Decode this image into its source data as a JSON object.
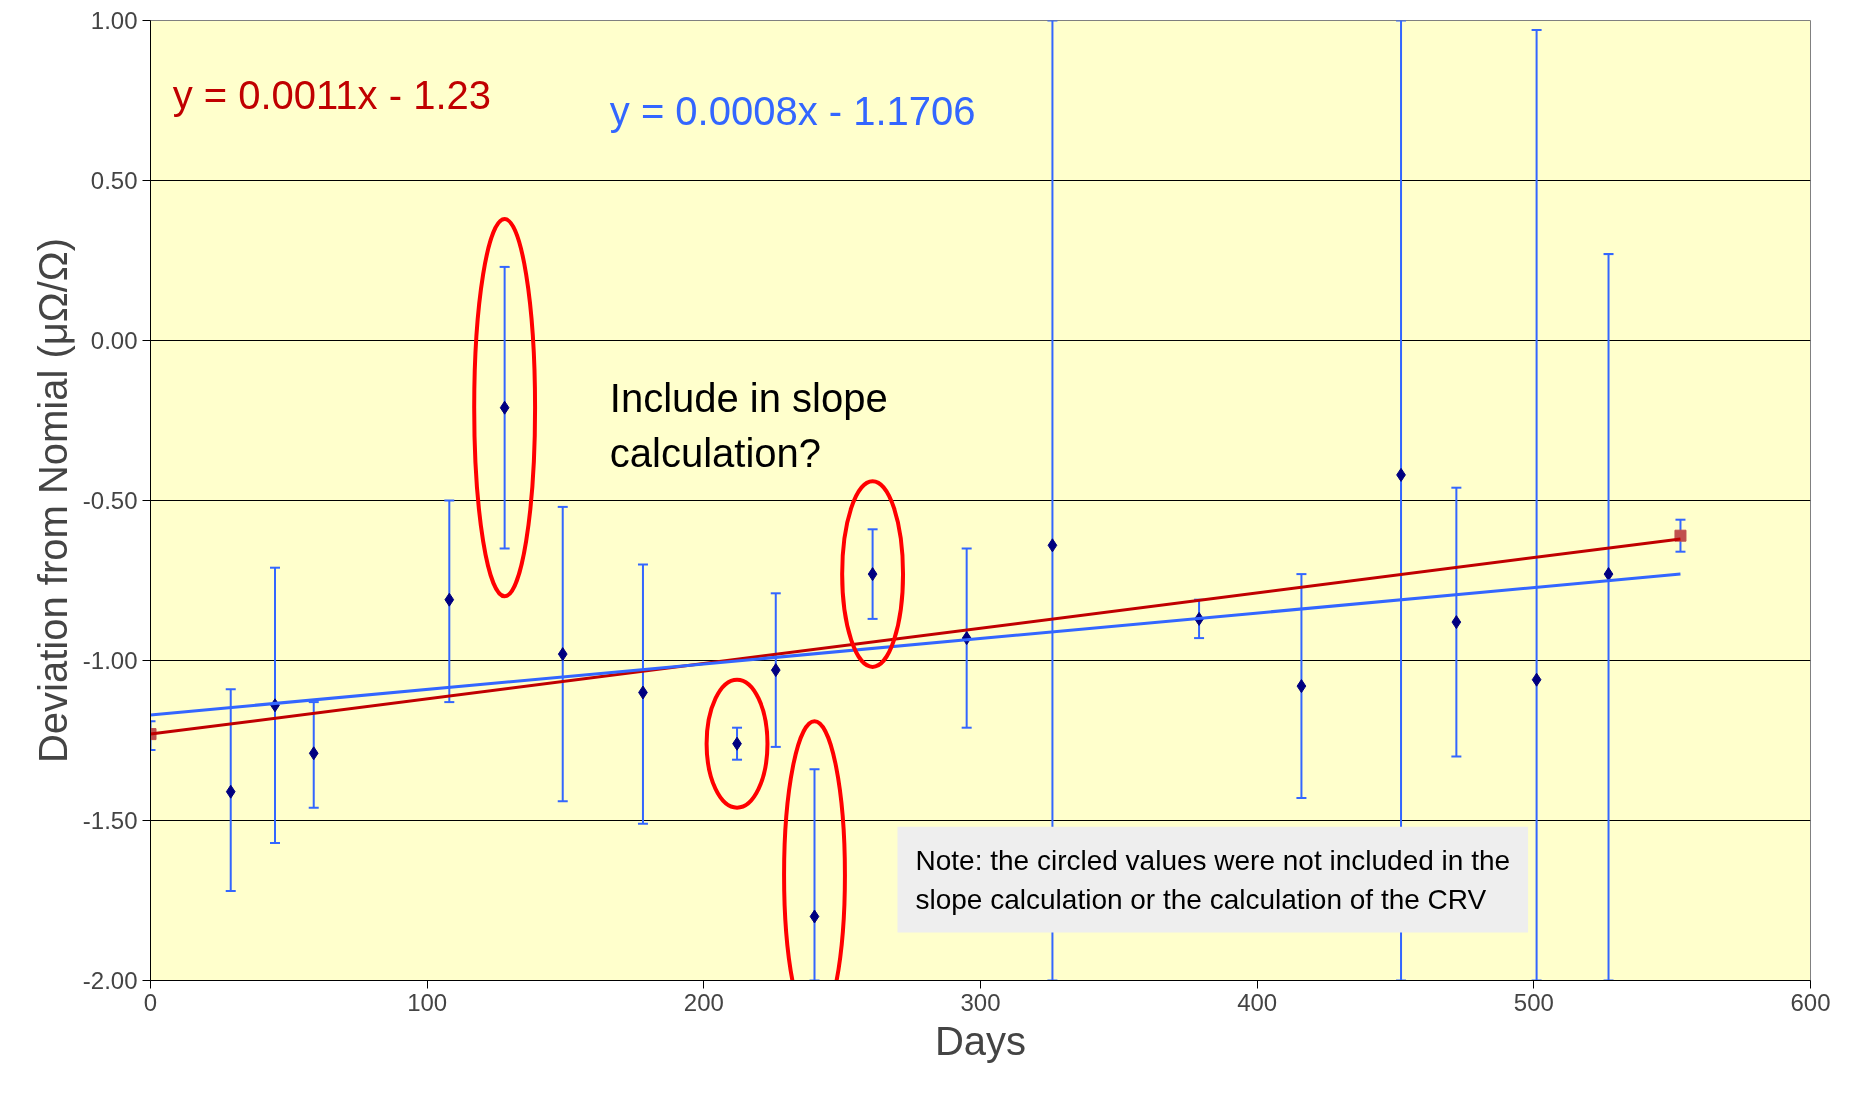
{
  "chart_data": {
    "type": "scatter",
    "xlabel": "Days",
    "ylabel": "Deviation from Nomial (μΩ/Ω)",
    "xlim": [
      0,
      600
    ],
    "xticks": [
      0,
      100,
      200,
      300,
      400,
      500,
      600
    ],
    "ylim": [
      -2.0,
      1.0
    ],
    "yticks": [
      {
        "value": -2.0,
        "label": "-2.00"
      },
      {
        "value": -1.5,
        "label": "-1.50"
      },
      {
        "value": -1.0,
        "label": "-1.00"
      },
      {
        "value": -0.5,
        "label": "-0.50"
      },
      {
        "value": 0.0,
        "label": "0.00"
      },
      {
        "value": 0.5,
        "label": "0.50"
      },
      {
        "value": 1.0,
        "label": "1.00"
      }
    ],
    "grid": "y",
    "marker": "diamond",
    "series": [
      {
        "color": "#000080",
        "x": [
          29,
          45,
          59,
          108,
          149,
          178,
          226,
          295,
          326,
          379,
          416,
          452,
          472,
          501,
          527
        ],
        "values": [
          -1.41,
          -1.14,
          -1.29,
          -0.81,
          -0.98,
          -1.1,
          -1.03,
          -0.93,
          -0.64,
          -0.87,
          -1.08,
          -0.42,
          -0.88,
          -1.06,
          -0.73
        ],
        "errors": [
          [
            -1.72,
            -1.09
          ],
          [
            -1.57,
            -0.71
          ],
          [
            -1.46,
            -1.13
          ],
          [
            -1.13,
            -0.5
          ],
          [
            -1.44,
            -0.52
          ],
          [
            -1.51,
            -0.7
          ],
          [
            -1.27,
            -0.79
          ],
          [
            -1.21,
            -0.65
          ],
          [
            -2.0,
            1.0
          ],
          [
            -0.93,
            -0.81
          ],
          [
            -1.43,
            -0.73
          ],
          [
            -2.0,
            1.0
          ],
          [
            -1.3,
            -0.46
          ],
          [
            -2.0,
            0.97
          ],
          [
            -2.0,
            0.27
          ]
        ]
      },
      {
        "color": "#000080",
        "x": [
          128,
          212,
          240,
          261
        ],
        "values": [
          -0.21,
          -1.26,
          -1.8,
          -0.73
        ],
        "errors": [
          [
            -0.65,
            0.23
          ],
          [
            -1.31,
            -1.21
          ],
          [
            -2.0,
            -1.34
          ],
          [
            -0.87,
            -0.59
          ]
        ]
      },
      {
        "marker": "square",
        "color": "#c0504d",
        "x": [
          0,
          553
        ],
        "values": [
          -1.23,
          -0.61
        ],
        "errors": [
          [
            -1.28,
            -1.19
          ],
          [
            -0.66,
            -0.56
          ]
        ]
      },
      {
        "type": "line",
        "marker": "none",
        "color": "#c00000",
        "x": [
          0,
          553
        ],
        "values": [
          -1.23,
          -0.62
        ]
      },
      {
        "type": "line",
        "marker": "none",
        "color": "#3366ff",
        "x": [
          0,
          553
        ],
        "values": [
          -1.17,
          -0.73
        ]
      }
    ],
    "annotations": [
      "y = 0.0011x - 1.23",
      "y = 0.0008x - 1.1706",
      "Include in slope\ncalculation?",
      "Note: the circled values were not included in the\nslope calculation or the calculation of the CRV"
    ]
  }
}
